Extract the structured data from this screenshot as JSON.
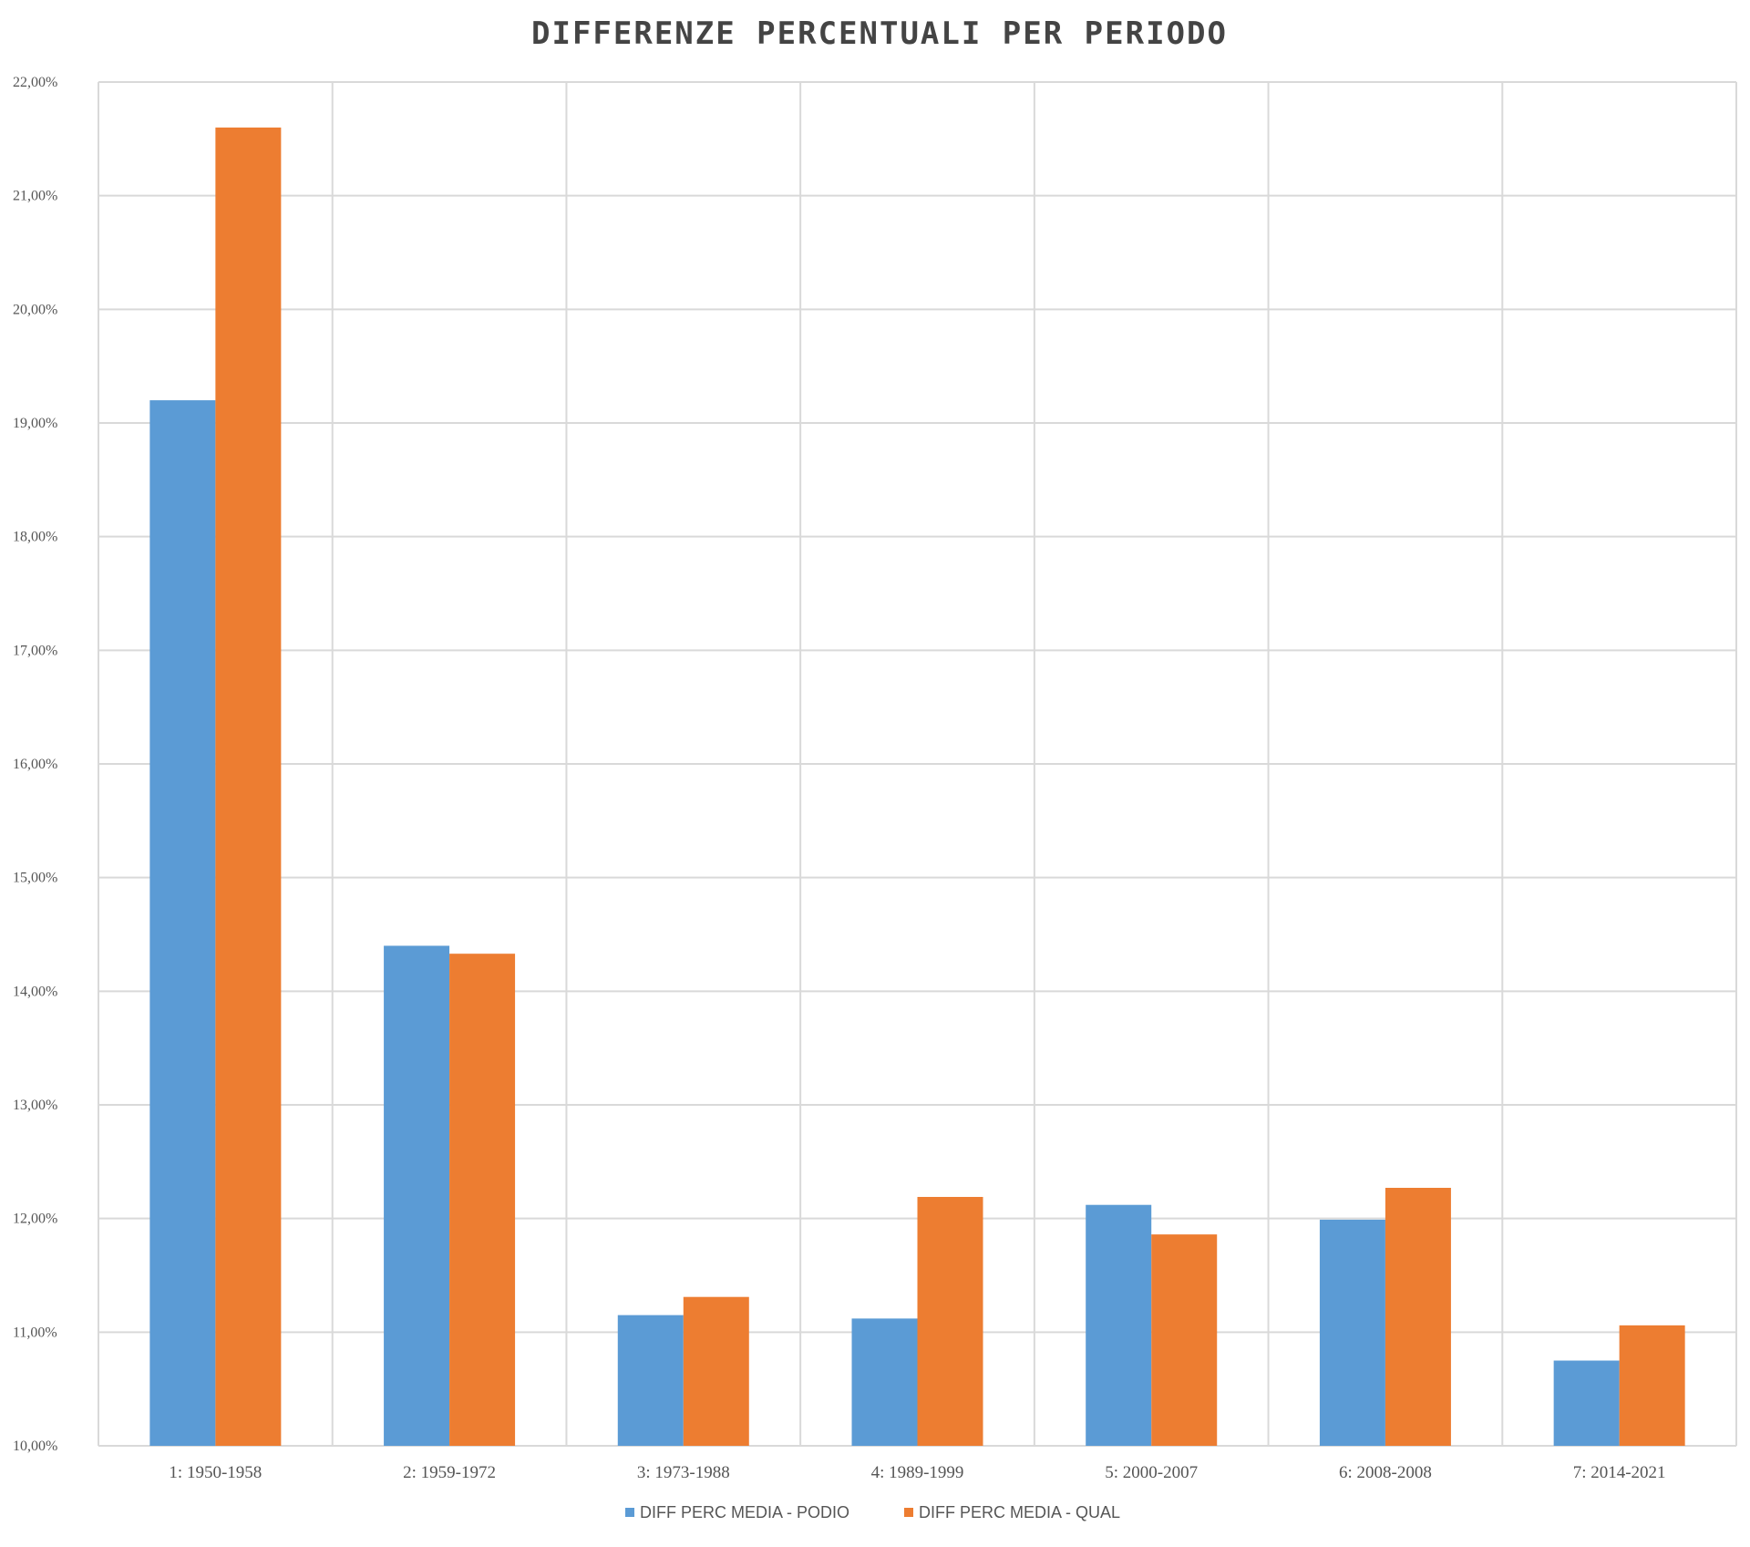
{
  "chart_data": {
    "type": "bar",
    "title": "DIFFERENZE PERCENTUALI PER PERIODO",
    "xlabel": "",
    "ylabel": "",
    "ylim": [
      10,
      22
    ],
    "yticks": [
      10,
      11,
      12,
      13,
      14,
      15,
      16,
      17,
      18,
      19,
      20,
      21,
      22
    ],
    "ytick_labels": [
      "10,00%",
      "11,00%",
      "12,00%",
      "13,00%",
      "14,00%",
      "15,00%",
      "16,00%",
      "17,00%",
      "18,00%",
      "19,00%",
      "20,00%",
      "21,00%",
      "22,00%"
    ],
    "categories": [
      "1: 1950-1958",
      "2: 1959-1972",
      "3: 1973-1988",
      "4: 1989-1999",
      "5: 2000-2007",
      "6: 2008-2008",
      "7: 2014-2021"
    ],
    "series": [
      {
        "name": "DIFF PERC MEDIA - PODIO",
        "color": "#5b9bd5",
        "values": [
          19.2,
          14.4,
          11.15,
          11.12,
          12.12,
          11.99,
          10.75
        ]
      },
      {
        "name": "DIFF PERC MEDIA - QUAL",
        "color": "#ed7d31",
        "values": [
          21.6,
          14.33,
          11.31,
          12.19,
          11.86,
          12.27,
          11.06
        ]
      }
    ],
    "grid": true,
    "legend_position": "bottom-center"
  }
}
